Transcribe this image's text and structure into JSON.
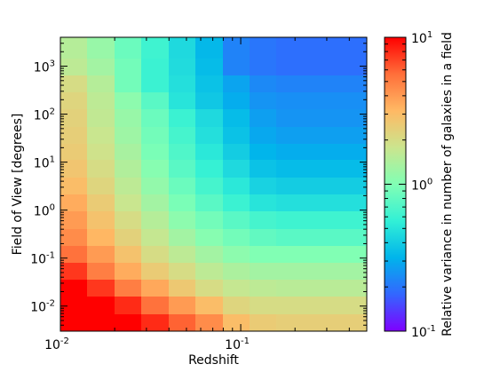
{
  "chart_data": {
    "type": "heatmap",
    "title": "",
    "xlabel": "Redshift",
    "ylabel": "Field of View [degrees]",
    "colorbar_label": "Relative variance in number of galaxies in a field",
    "x_scale": "log",
    "y_scale": "log",
    "color_scale": "log",
    "xlim": [
      0.01,
      0.5
    ],
    "ylim": [
      0.003,
      4000
    ],
    "clim": [
      0.1,
      10
    ],
    "x_ticks": [
      {
        "value": 0.01,
        "base": "10",
        "exp": "-2"
      },
      {
        "value": 0.1,
        "base": "10",
        "exp": "-1"
      }
    ],
    "y_ticks": [
      {
        "value": 0.01,
        "base": "10",
        "exp": "-2"
      },
      {
        "value": 0.1,
        "base": "10",
        "exp": "-1"
      },
      {
        "value": 1,
        "base": "10",
        "exp": "0"
      },
      {
        "value": 10,
        "base": "10",
        "exp": "1"
      },
      {
        "value": 100,
        "base": "10",
        "exp": "2"
      },
      {
        "value": 1000,
        "base": "10",
        "exp": "3"
      }
    ],
    "colorbar_ticks": [
      {
        "value": 0.1,
        "base": "10",
        "exp": "-1"
      },
      {
        "value": 1,
        "base": "10",
        "exp": "0"
      },
      {
        "value": 10,
        "base": "10",
        "exp": "1"
      }
    ],
    "x_bin_edges": [
      0.01,
      0.0141,
      0.02,
      0.0282,
      0.0398,
      0.0562,
      0.0794,
      0.112,
      0.158,
      0.224,
      0.316,
      0.5
    ],
    "y_bin_edges": [
      0.003,
      0.0068,
      0.0155,
      0.035,
      0.079,
      0.18,
      0.41,
      0.93,
      2.1,
      4.8,
      11,
      24,
      55,
      125,
      280,
      640,
      1450,
      4000
    ],
    "colormap_stops": [
      "#7f00ff",
      "#3366ff",
      "#00b4eb",
      "#32f0d6",
      "#81ffb4",
      "#cbe58e",
      "#ffb964",
      "#ff6f3a",
      "#ff0000"
    ],
    "grid": false,
    "cell_values": [
      [
        10,
        10,
        10,
        8.0,
        6.0,
        4.5,
        3.0,
        2.5,
        2.4,
        2.4,
        2.4
      ],
      [
        10,
        10,
        8.0,
        5.5,
        4.0,
        3.0,
        2.2,
        2.0,
        2.0,
        2.0,
        2.0
      ],
      [
        10,
        7.5,
        5.0,
        3.6,
        2.6,
        2.0,
        1.7,
        1.6,
        1.55,
        1.55,
        1.55
      ],
      [
        7.5,
        5.0,
        3.5,
        2.5,
        2.0,
        1.6,
        1.4,
        1.3,
        1.3,
        1.3,
        1.3
      ],
      [
        5.5,
        4.0,
        2.8,
        2.0,
        1.6,
        1.3,
        1.1,
        1.0,
        1.0,
        1.0,
        1.0
      ],
      [
        4.5,
        3.2,
        2.3,
        1.7,
        1.3,
        1.05,
        0.9,
        0.8,
        0.75,
        0.75,
        0.75
      ],
      [
        4.0,
        2.8,
        2.0,
        1.5,
        1.1,
        0.9,
        0.75,
        0.65,
        0.62,
        0.62,
        0.62
      ],
      [
        3.5,
        2.5,
        1.75,
        1.3,
        0.95,
        0.75,
        0.6,
        0.5,
        0.48,
        0.48,
        0.48
      ],
      [
        3.0,
        2.2,
        1.6,
        1.15,
        0.85,
        0.65,
        0.52,
        0.42,
        0.4,
        0.4,
        0.4
      ],
      [
        2.7,
        2.0,
        1.45,
        1.05,
        0.75,
        0.58,
        0.45,
        0.36,
        0.34,
        0.34,
        0.34
      ],
      [
        2.5,
        1.85,
        1.35,
        0.95,
        0.7,
        0.52,
        0.4,
        0.32,
        0.3,
        0.3,
        0.3
      ],
      [
        2.4,
        1.75,
        1.25,
        0.9,
        0.65,
        0.48,
        0.36,
        0.29,
        0.27,
        0.27,
        0.27
      ],
      [
        2.3,
        1.65,
        1.2,
        0.85,
        0.6,
        0.45,
        0.34,
        0.27,
        0.25,
        0.25,
        0.25
      ],
      [
        2.2,
        1.6,
        1.1,
        0.75,
        0.5,
        0.38,
        0.3,
        0.25,
        0.24,
        0.24,
        0.24
      ],
      [
        2.0,
        1.5,
        0.9,
        0.6,
        0.48,
        0.36,
        0.28,
        0.23,
        0.22,
        0.22,
        0.22
      ],
      [
        1.6,
        1.3,
        0.9,
        0.6,
        0.46,
        0.34,
        0.22,
        0.2,
        0.19,
        0.19,
        0.19
      ],
      [
        1.5,
        1.2,
        0.85,
        0.62,
        0.45,
        0.33,
        0.22,
        0.2,
        0.19,
        0.19,
        0.19
      ]
    ]
  }
}
